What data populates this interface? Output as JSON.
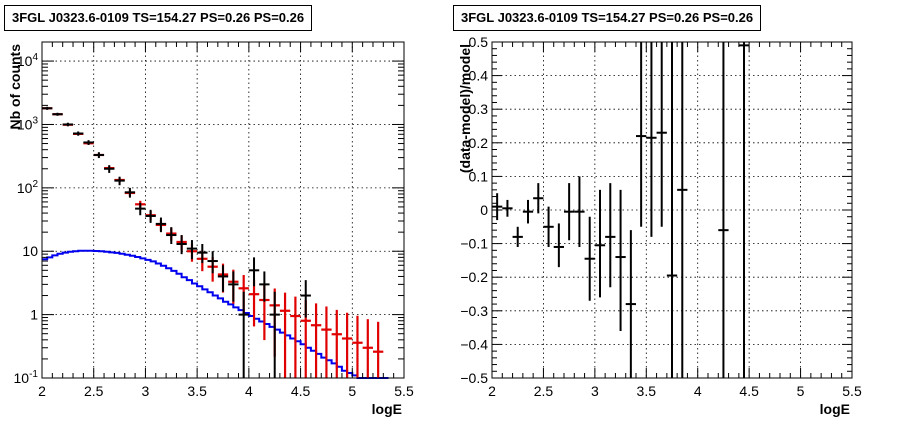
{
  "chart_data": [
    {
      "type": "line",
      "title": "3FGL J0323.6-0109 TS=154.27 PS=0.26 PS=0.26",
      "xlabel": "logE",
      "ylabel": "Nb of counts",
      "xscale": "linear",
      "yscale": "log",
      "xlim": [
        2,
        5.5
      ],
      "ylim": [
        0.1,
        20000
      ],
      "grid": true,
      "x_ticks": [
        "2",
        "2.5",
        "3",
        "3.5",
        "4",
        "4.5",
        "5",
        "5.5"
      ],
      "y_ticks": [
        "10^{-1}",
        "1",
        "10",
        "10^{2}",
        "10^{3}",
        "10^{4}"
      ],
      "series": [
        {
          "kind": "data-points",
          "color": "#000000",
          "points": [
            {
              "x": 2.05,
              "y": 1800,
              "ylo": 1700,
              "yhi": 1900
            },
            {
              "x": 2.15,
              "y": 1450,
              "ylo": 1370,
              "yhi": 1530
            },
            {
              "x": 2.25,
              "y": 1000,
              "ylo": 935,
              "yhi": 1065
            },
            {
              "x": 2.35,
              "y": 720,
              "ylo": 665,
              "yhi": 775
            },
            {
              "x": 2.45,
              "y": 520,
              "ylo": 475,
              "yhi": 565
            },
            {
              "x": 2.55,
              "y": 330,
              "ylo": 295,
              "yhi": 365
            },
            {
              "x": 2.65,
              "y": 200,
              "ylo": 172,
              "yhi": 228
            },
            {
              "x": 2.75,
              "y": 130,
              "ylo": 110,
              "yhi": 150
            },
            {
              "x": 2.85,
              "y": 85,
              "ylo": 70,
              "yhi": 100
            },
            {
              "x": 2.95,
              "y": 47,
              "ylo": 37,
              "yhi": 58
            },
            {
              "x": 3.05,
              "y": 36,
              "ylo": 28,
              "yhi": 45
            },
            {
              "x": 3.15,
              "y": 27,
              "ylo": 20,
              "yhi": 34
            },
            {
              "x": 3.25,
              "y": 18,
              "ylo": 13,
              "yhi": 24
            },
            {
              "x": 3.35,
              "y": 13,
              "ylo": 9,
              "yhi": 18
            },
            {
              "x": 3.45,
              "y": 11,
              "ylo": 7.5,
              "yhi": 15
            },
            {
              "x": 3.55,
              "y": 9.5,
              "ylo": 6.5,
              "yhi": 13
            },
            {
              "x": 3.65,
              "y": 7,
              "ylo": 4.5,
              "yhi": 10
            },
            {
              "x": 3.75,
              "y": 4,
              "ylo": 2.3,
              "yhi": 6
            },
            {
              "x": 3.85,
              "y": 3,
              "ylo": 1.6,
              "yhi": 4.8
            },
            {
              "x": 3.95,
              "y": 1,
              "ylo": 0.1,
              "yhi": 2.3
            },
            {
              "x": 4.05,
              "y": 5,
              "ylo": 2.8,
              "yhi": 8
            },
            {
              "x": 4.15,
              "y": 3,
              "ylo": 1.6,
              "yhi": 4.8
            },
            {
              "x": 4.25,
              "y": 1,
              "ylo": 0.1,
              "yhi": 2.3
            },
            {
              "x": 4.55,
              "y": 2,
              "ylo": 0.9,
              "yhi": 3.5
            }
          ]
        },
        {
          "kind": "model-points",
          "color": "#e00000",
          "points": [
            {
              "x": 2.05,
              "y": 1800
            },
            {
              "x": 2.15,
              "y": 1450
            },
            {
              "x": 2.25,
              "y": 990
            },
            {
              "x": 2.35,
              "y": 710
            },
            {
              "x": 2.45,
              "y": 505
            },
            {
              "x": 2.55,
              "y": 330
            },
            {
              "x": 2.65,
              "y": 205
            },
            {
              "x": 2.75,
              "y": 133
            },
            {
              "x": 2.85,
              "y": 83
            },
            {
              "x": 2.95,
              "y": 55
            },
            {
              "x": 3.05,
              "y": 37
            },
            {
              "x": 3.15,
              "y": 26
            },
            {
              "x": 3.25,
              "y": 19
            },
            {
              "x": 3.35,
              "y": 14
            },
            {
              "x": 3.45,
              "y": 10
            },
            {
              "x": 3.55,
              "y": 7.6
            },
            {
              "x": 3.65,
              "y": 5.7
            },
            {
              "x": 3.75,
              "y": 4.3
            },
            {
              "x": 3.85,
              "y": 3.3
            },
            {
              "x": 3.95,
              "y": 2.6
            },
            {
              "x": 4.05,
              "y": 2.1
            },
            {
              "x": 4.15,
              "y": 1.7
            },
            {
              "x": 4.25,
              "y": 1.4
            },
            {
              "x": 4.35,
              "y": 1.15
            },
            {
              "x": 4.45,
              "y": 0.95
            },
            {
              "x": 4.55,
              "y": 0.8
            },
            {
              "x": 4.65,
              "y": 0.68
            },
            {
              "x": 4.75,
              "y": 0.58
            },
            {
              "x": 4.85,
              "y": 0.49
            },
            {
              "x": 4.95,
              "y": 0.42
            },
            {
              "x": 5.05,
              "y": 0.36
            },
            {
              "x": 5.15,
              "y": 0.3
            },
            {
              "x": 5.25,
              "y": 0.26
            }
          ]
        },
        {
          "kind": "step",
          "color": "#0000ee",
          "bin_width": 0.05,
          "x": [
            2.0,
            2.05,
            2.1,
            2.15,
            2.2,
            2.25,
            2.3,
            2.35,
            2.4,
            2.45,
            2.5,
            2.55,
            2.6,
            2.65,
            2.7,
            2.75,
            2.8,
            2.85,
            2.9,
            2.95,
            3.0,
            3.05,
            3.1,
            3.15,
            3.2,
            3.25,
            3.3,
            3.35,
            3.4,
            3.45,
            3.5,
            3.55,
            3.6,
            3.65,
            3.7,
            3.75,
            3.8,
            3.85,
            3.9,
            3.95,
            4.0,
            4.05,
            4.1,
            4.15,
            4.2,
            4.25,
            4.3,
            4.35,
            4.4,
            4.45,
            4.5,
            4.55,
            4.6,
            4.65,
            4.7,
            4.75,
            4.8,
            4.85,
            4.9,
            4.95,
            5.0,
            5.05,
            5.1,
            5.15,
            5.2,
            5.25,
            5.3
          ],
          "values": [
            7.5,
            8.0,
            8.6,
            9.1,
            9.5,
            9.8,
            10.0,
            10.2,
            10.2,
            10.2,
            10.1,
            10.0,
            9.8,
            9.6,
            9.4,
            9.1,
            8.8,
            8.5,
            8.1,
            7.7,
            7.3,
            6.9,
            6.4,
            5.9,
            5.4,
            4.9,
            4.4,
            3.9,
            3.5,
            3.1,
            2.8,
            2.5,
            2.25,
            2.0,
            1.8,
            1.6,
            1.45,
            1.3,
            1.18,
            1.06,
            0.95,
            0.86,
            0.78,
            0.71,
            0.64,
            0.58,
            0.52,
            0.47,
            0.42,
            0.38,
            0.34,
            0.3,
            0.27,
            0.24,
            0.21,
            0.19,
            0.17,
            0.15,
            0.13,
            0.12,
            0.11,
            0.1,
            0.1,
            0.1,
            0.1,
            0.1,
            0.1
          ]
        }
      ]
    },
    {
      "type": "scatter",
      "title": "3FGL J0323.6-0109 TS=154.27 PS=0.26 PS=0.26",
      "xlabel": "logE",
      "ylabel": "(data-model)/model",
      "xlim": [
        2,
        5.5
      ],
      "ylim": [
        -0.5,
        0.5
      ],
      "grid": true,
      "x_ticks": [
        "2",
        "2.5",
        "3",
        "3.5",
        "4",
        "4.5",
        "5",
        "5.5"
      ],
      "y_ticks": [
        "−0.5",
        "−0.4",
        "−0.3",
        "−0.2",
        "−0.1",
        "0",
        "0.1",
        "0.2",
        "0.3",
        "0.4",
        "0.5"
      ],
      "series": [
        {
          "kind": "residuals",
          "color": "#000000",
          "points": [
            {
              "x": 2.05,
              "y": 0.01,
              "ylo": -0.03,
              "yhi": 0.05
            },
            {
              "x": 2.15,
              "y": 0.005,
              "ylo": -0.02,
              "yhi": 0.03
            },
            {
              "x": 2.25,
              "y": -0.08,
              "ylo": -0.11,
              "yhi": -0.05
            },
            {
              "x": 2.35,
              "y": -0.005,
              "ylo": -0.04,
              "yhi": 0.03
            },
            {
              "x": 2.45,
              "y": 0.035,
              "ylo": -0.01,
              "yhi": 0.08
            },
            {
              "x": 2.55,
              "y": -0.05,
              "ylo": -0.11,
              "yhi": 0.01
            },
            {
              "x": 2.65,
              "y": -0.11,
              "ylo": -0.17,
              "yhi": -0.04
            },
            {
              "x": 2.75,
              "y": -0.005,
              "ylo": -0.09,
              "yhi": 0.08
            },
            {
              "x": 2.85,
              "y": -0.005,
              "ylo": -0.11,
              "yhi": 0.1
            },
            {
              "x": 2.95,
              "y": -0.145,
              "ylo": -0.27,
              "yhi": -0.02
            },
            {
              "x": 3.05,
              "y": -0.105,
              "ylo": -0.26,
              "yhi": 0.06
            },
            {
              "x": 3.15,
              "y": -0.08,
              "ylo": -0.23,
              "yhi": 0.08
            },
            {
              "x": 3.25,
              "y": -0.14,
              "ylo": -0.36,
              "yhi": 0.06
            },
            {
              "x": 3.35,
              "y": -0.28,
              "ylo": -0.5,
              "yhi": -0.06
            },
            {
              "x": 3.45,
              "y": 0.22,
              "ylo": -0.05,
              "yhi": 0.5
            },
            {
              "x": 3.55,
              "y": 0.215,
              "ylo": -0.08,
              "yhi": 0.5
            },
            {
              "x": 3.65,
              "y": 0.23,
              "ylo": -0.05,
              "yhi": 0.5
            },
            {
              "x": 3.75,
              "y": -0.195,
              "ylo": -0.5,
              "yhi": 0.5
            },
            {
              "x": 3.85,
              "y": 0.06,
              "ylo": -0.5,
              "yhi": 0.5
            },
            {
              "x": 4.25,
              "y": -0.06,
              "ylo": -0.5,
              "yhi": 0.5
            },
            {
              "x": 4.45,
              "y": 0.49,
              "ylo": -0.5,
              "yhi": 0.5
            }
          ]
        }
      ]
    }
  ]
}
